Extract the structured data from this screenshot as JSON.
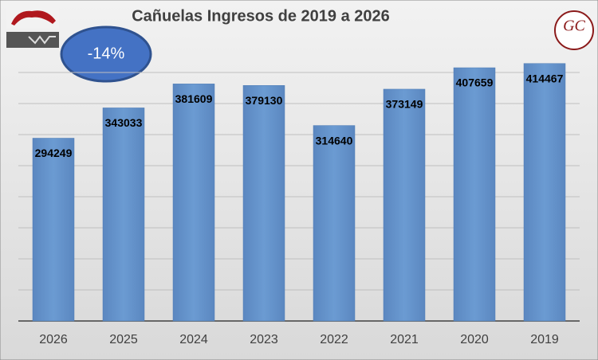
{
  "chart_data": {
    "type": "bar",
    "title": "Cañuelas Ingresos de 2019 a 2026",
    "categories": [
      "2026",
      "2025",
      "2024",
      "2023",
      "2022",
      "2021",
      "2020",
      "2019"
    ],
    "values": [
      294249,
      343033,
      381609,
      379130,
      314640,
      373149,
      407659,
      414467
    ],
    "color": "#5f8ec6",
    "ylim": [
      0,
      450000
    ],
    "yticks": [
      0,
      50000,
      100000,
      150000,
      200000,
      250000,
      300000,
      350000,
      400000
    ],
    "grid": true,
    "annotation": "-14%",
    "logo_text": "GC"
  }
}
